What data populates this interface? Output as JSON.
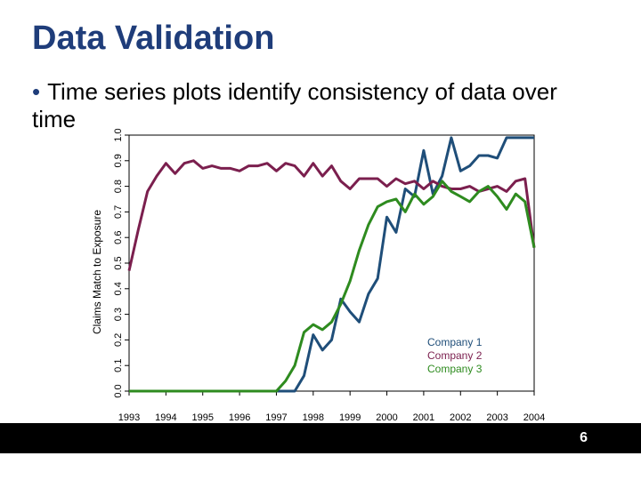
{
  "slide": {
    "title": "Data Validation",
    "bullet": "Time series plots identify consistency of data over time",
    "page_number": "6"
  },
  "chart_data": {
    "type": "line",
    "title": "",
    "xlabel": "",
    "ylabel": "Claims Match to Exposure",
    "xlim": [
      1993,
      2004
    ],
    "ylim": [
      0.0,
      1.0
    ],
    "x_ticks": [
      "1993",
      "1994",
      "1995",
      "1996",
      "1997",
      "1998",
      "1999",
      "2000",
      "2001",
      "2002",
      "2003",
      "2004"
    ],
    "y_ticks": [
      "0.0",
      "0.1",
      "0.2",
      "0.3",
      "0.4",
      "0.5",
      "0.6",
      "0.7",
      "0.8",
      "0.9",
      "1.0"
    ],
    "grid": false,
    "legend_position": "bottom-right",
    "series": [
      {
        "name": "Company 1",
        "color": "#1f4e79",
        "x": [
          1993,
          1994,
          1995,
          1996,
          1997,
          1997.25,
          1997.5,
          1997.75,
          1998,
          1998.25,
          1998.5,
          1998.75,
          1999,
          1999.25,
          1999.5,
          1999.75,
          2000,
          2000.25,
          2000.5,
          2000.75,
          2001,
          2001.25,
          2001.5,
          2001.75,
          2002,
          2002.25,
          2002.5,
          2002.75,
          2003,
          2003.25,
          2003.5,
          2003.75,
          2004
        ],
        "y": [
          0.0,
          0.0,
          0.0,
          0.0,
          0.0,
          0.0,
          0.0,
          0.06,
          0.22,
          0.16,
          0.2,
          0.36,
          0.31,
          0.27,
          0.38,
          0.44,
          0.68,
          0.62,
          0.79,
          0.76,
          0.94,
          0.77,
          0.84,
          0.99,
          0.86,
          0.88,
          0.92,
          0.92,
          0.91,
          0.99,
          0.99,
          0.99,
          0.99
        ]
      },
      {
        "name": "Company 2",
        "color": "#7b1f4e",
        "x": [
          1993,
          1993.25,
          1993.5,
          1993.75,
          1994,
          1994.25,
          1994.5,
          1994.75,
          1995,
          1995.25,
          1995.5,
          1995.75,
          1996,
          1996.25,
          1996.5,
          1996.75,
          1997,
          1997.25,
          1997.5,
          1997.75,
          1998,
          1998.25,
          1998.5,
          1998.75,
          1999,
          1999.25,
          1999.5,
          1999.75,
          2000,
          2000.25,
          2000.5,
          2000.75,
          2001,
          2001.25,
          2001.5,
          2001.75,
          2002,
          2002.25,
          2002.5,
          2002.75,
          2003,
          2003.25,
          2003.5,
          2003.75,
          2004
        ],
        "y": [
          0.47,
          0.63,
          0.78,
          0.84,
          0.89,
          0.85,
          0.89,
          0.9,
          0.87,
          0.88,
          0.87,
          0.87,
          0.86,
          0.88,
          0.88,
          0.89,
          0.86,
          0.89,
          0.88,
          0.84,
          0.89,
          0.84,
          0.88,
          0.82,
          0.79,
          0.83,
          0.83,
          0.83,
          0.8,
          0.83,
          0.81,
          0.82,
          0.79,
          0.82,
          0.8,
          0.79,
          0.79,
          0.8,
          0.78,
          0.79,
          0.8,
          0.78,
          0.82,
          0.83,
          0.56
        ]
      },
      {
        "name": "Company 3",
        "color": "#2e8b1f",
        "x": [
          1993,
          1994,
          1995,
          1996,
          1997,
          1997.25,
          1997.5,
          1997.75,
          1998,
          1998.25,
          1998.5,
          1998.75,
          1999,
          1999.25,
          1999.5,
          1999.75,
          2000,
          2000.25,
          2000.5,
          2000.75,
          2001,
          2001.25,
          2001.5,
          2001.75,
          2002,
          2002.25,
          2002.5,
          2002.75,
          2003,
          2003.25,
          2003.5,
          2003.75,
          2004
        ],
        "y": [
          0.0,
          0.0,
          0.0,
          0.0,
          0.0,
          0.04,
          0.1,
          0.23,
          0.26,
          0.24,
          0.27,
          0.34,
          0.43,
          0.55,
          0.65,
          0.72,
          0.74,
          0.75,
          0.7,
          0.77,
          0.73,
          0.76,
          0.82,
          0.78,
          0.76,
          0.74,
          0.78,
          0.8,
          0.76,
          0.71,
          0.77,
          0.74,
          0.56
        ]
      }
    ]
  }
}
